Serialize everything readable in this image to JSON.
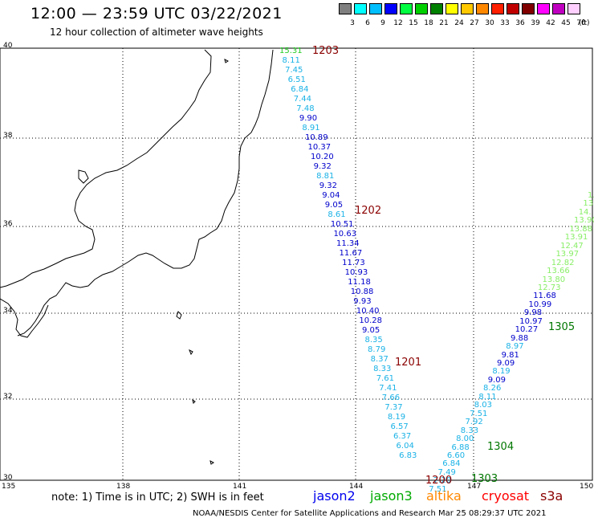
{
  "title": "12:00 — 23:59 UTC 03/22/2021",
  "subtitle": "12 hour collection of altimeter wave heights",
  "color_scale": {
    "labels": [
      "3",
      "6",
      "9",
      "12",
      "15",
      "18",
      "21",
      "24",
      "27",
      "30",
      "33",
      "36",
      "39",
      "42",
      "45",
      "70"
    ],
    "unit": "(ft)",
    "colors": [
      "#7f7f7f",
      "#00ffff",
      "#00bfff",
      "#0000ff",
      "#00ff40",
      "#00d000",
      "#008000",
      "#ffff00",
      "#ffc800",
      "#ff8800",
      "#ff2000",
      "#c00000",
      "#800000",
      "#ff00ff",
      "#c000c0",
      "#ffd0ff"
    ]
  },
  "axes": {
    "lat_labels": [
      "40",
      "38",
      "36",
      "34",
      "32",
      "30"
    ],
    "lon_labels": [
      "135",
      "138",
      "141",
      "144",
      "147",
      "150"
    ]
  },
  "tracks": [
    {
      "id": "1203",
      "color": "#8b0000",
      "label": "1203",
      "points": [
        {
          "v": "15.31",
          "c": "#22cc22"
        },
        {
          "v": "8.11",
          "c": "#1ab2e6"
        },
        {
          "v": "7.45",
          "c": "#1ab2e6"
        },
        {
          "v": "6.51",
          "c": "#1ab2e6"
        },
        {
          "v": "6.84",
          "c": "#1ab2e6"
        },
        {
          "v": "7.44",
          "c": "#1ab2e6"
        },
        {
          "v": "7.48",
          "c": "#1ab2e6"
        },
        {
          "v": "9.90",
          "c": "#0000cc"
        },
        {
          "v": "8.91",
          "c": "#1ab2e6"
        },
        {
          "v": "10.89",
          "c": "#0000cc"
        },
        {
          "v": "10.37",
          "c": "#0000cc"
        },
        {
          "v": "10.20",
          "c": "#0000cc"
        },
        {
          "v": "9.32",
          "c": "#0000cc"
        },
        {
          "v": "8.81",
          "c": "#1ab2e6"
        },
        {
          "v": "9.32",
          "c": "#0000cc"
        },
        {
          "v": "9.04",
          "c": "#0000cc"
        },
        {
          "v": "9.05",
          "c": "#0000cc"
        },
        {
          "v": "8.61",
          "c": "#1ab2e6"
        },
        {
          "v": "10.51",
          "c": "#0000cc"
        },
        {
          "v": "10.63",
          "c": "#0000cc"
        },
        {
          "v": "11.34",
          "c": "#0000cc"
        },
        {
          "v": "11.67",
          "c": "#0000cc"
        },
        {
          "v": "11.73",
          "c": "#0000cc"
        },
        {
          "v": "10.93",
          "c": "#0000cc"
        },
        {
          "v": "11.18",
          "c": "#0000cc"
        },
        {
          "v": "10.88",
          "c": "#0000cc"
        },
        {
          "v": "9.93",
          "c": "#0000cc"
        },
        {
          "v": "10.40",
          "c": "#0000cc"
        },
        {
          "v": "10.28",
          "c": "#0000cc"
        },
        {
          "v": "9.05",
          "c": "#0000cc"
        },
        {
          "v": "8.35",
          "c": "#1ab2e6"
        },
        {
          "v": "8.79",
          "c": "#1ab2e6"
        },
        {
          "v": "8.37",
          "c": "#1ab2e6"
        },
        {
          "v": "8.33",
          "c": "#1ab2e6"
        },
        {
          "v": "7.61",
          "c": "#1ab2e6"
        },
        {
          "v": "7.41",
          "c": "#1ab2e6"
        },
        {
          "v": "7.66",
          "c": "#1ab2e6"
        },
        {
          "v": "7.37",
          "c": "#1ab2e6"
        },
        {
          "v": "8.19",
          "c": "#1ab2e6"
        },
        {
          "v": "6.57",
          "c": "#1ab2e6"
        },
        {
          "v": "6.37",
          "c": "#1ab2e6"
        },
        {
          "v": "6.04",
          "c": "#1ab2e6"
        },
        {
          "v": "6.83",
          "c": "#1ab2e6"
        }
      ]
    },
    {
      "id": "1305",
      "label": "1305",
      "points": [
        {
          "v": "1.",
          "c": "#88ee66"
        },
        {
          "v": "13.",
          "c": "#88ee66"
        },
        {
          "v": "14.",
          "c": "#88ee66"
        },
        {
          "v": "13.90",
          "c": "#88ee66"
        },
        {
          "v": "13.88",
          "c": "#88ee66"
        },
        {
          "v": "13.91",
          "c": "#88ee66"
        },
        {
          "v": "12.47",
          "c": "#88ee66"
        },
        {
          "v": "13.97",
          "c": "#88ee66"
        },
        {
          "v": "12.82",
          "c": "#88ee66"
        },
        {
          "v": "13.66",
          "c": "#88ee66"
        },
        {
          "v": "13.80",
          "c": "#88ee66"
        },
        {
          "v": "12.73",
          "c": "#88ee66"
        },
        {
          "v": "11.68",
          "c": "#0000cc"
        },
        {
          "v": "10.99",
          "c": "#0000cc"
        },
        {
          "v": "9.98",
          "c": "#0000cc"
        },
        {
          "v": "10.97",
          "c": "#0000cc"
        },
        {
          "v": "10.27",
          "c": "#0000cc"
        },
        {
          "v": "9.88",
          "c": "#0000cc"
        },
        {
          "v": "8.97",
          "c": "#1ab2e6"
        },
        {
          "v": "9.81",
          "c": "#0000cc"
        },
        {
          "v": "9.09",
          "c": "#0000cc"
        },
        {
          "v": "8.19",
          "c": "#1ab2e6"
        },
        {
          "v": "9.09",
          "c": "#0000cc"
        },
        {
          "v": "8.26",
          "c": "#1ab2e6"
        },
        {
          "v": "8.11",
          "c": "#1ab2e6"
        },
        {
          "v": "8.03",
          "c": "#1ab2e6"
        },
        {
          "v": "7.51",
          "c": "#1ab2e6"
        },
        {
          "v": "7.92",
          "c": "#1ab2e6"
        },
        {
          "v": "8.33",
          "c": "#1ab2e6"
        },
        {
          "v": "8.00",
          "c": "#1ab2e6"
        },
        {
          "v": "6.88",
          "c": "#1ab2e6"
        },
        {
          "v": "6.60",
          "c": "#1ab2e6"
        },
        {
          "v": "6.84",
          "c": "#1ab2e6"
        },
        {
          "v": "7.49",
          "c": "#1ab2e6"
        },
        {
          "v": "7.20",
          "c": "#1ab2e6"
        },
        {
          "v": "7.51",
          "c": "#1ab2e6"
        }
      ]
    }
  ],
  "pass_labels": [
    {
      "text": "1203",
      "color": "#8b0000"
    },
    {
      "text": "1202",
      "color": "#8b0000"
    },
    {
      "text": "1201",
      "color": "#8b0000"
    },
    {
      "text": "1200",
      "color": "#8b0000"
    },
    {
      "text": "1305",
      "color": "#007700"
    },
    {
      "text": "1304",
      "color": "#007700"
    },
    {
      "text": "1303",
      "color": "#007700"
    }
  ],
  "note": "note:  1) Time is in UTC; 2) SWH is in feet",
  "satellites": [
    {
      "name": "jason2",
      "color": "#0000ee"
    },
    {
      "name": "jason3",
      "color": "#00aa00"
    },
    {
      "name": "altika",
      "color": "#ff8800"
    },
    {
      "name": "cryosat",
      "color": "#ff0000"
    },
    {
      "name": "s3a",
      "color": "#8b0000"
    }
  ],
  "footer": "NOAA/NESDIS Center for Satellite Applications and Research    Mar 25 08:29:37 UTC 2021"
}
